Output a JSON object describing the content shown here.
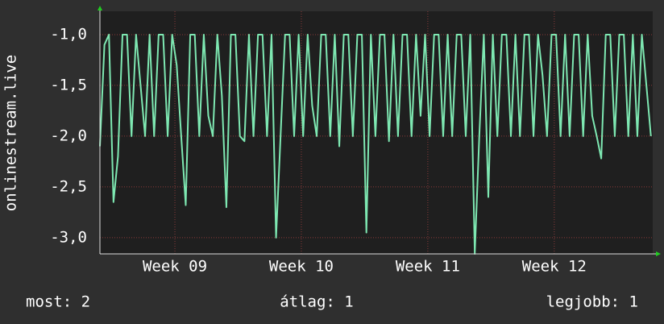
{
  "chart_data": {
    "type": "line",
    "y_label": "onlinestream.live",
    "x": [
      0,
      0.25,
      0.5,
      0.75,
      1,
      1.25,
      1.5,
      1.75,
      2,
      2.25,
      2.5,
      2.75,
      3,
      3.25,
      3.5,
      3.75,
      4,
      4.25,
      4.5,
      4.75,
      5,
      5.25,
      5.5,
      5.75,
      6,
      6.25,
      6.5,
      6.75,
      7,
      7.25,
      7.5,
      7.75,
      8,
      8.25,
      8.5,
      8.75,
      9,
      9.25,
      9.5,
      9.75,
      10,
      10.25,
      10.5,
      10.75,
      11,
      11.25,
      11.5,
      11.75,
      12,
      12.25,
      12.5,
      12.75,
      13,
      13.25,
      13.5,
      13.75,
      14,
      14.25,
      14.5,
      14.75,
      15,
      15.25,
      15.5,
      15.75,
      16,
      16.25,
      16.5,
      16.75,
      17,
      17.25,
      17.5,
      17.75,
      18,
      18.25,
      18.5,
      18.75,
      19,
      19.25,
      19.5,
      19.75,
      20,
      20.25,
      20.5,
      20.75,
      21,
      21.25,
      21.5,
      21.75,
      22,
      22.25,
      22.5,
      22.75,
      23,
      23.25,
      23.5,
      23.75,
      24,
      24.25,
      24.5,
      24.75,
      25,
      25.25,
      25.5,
      25.75,
      26,
      26.25,
      26.5,
      26.75,
      27,
      27.25,
      27.5,
      27.75,
      28,
      28.25,
      28.5,
      28.75,
      29,
      29.25,
      29.5,
      29.75,
      30,
      30.25,
      30.5
    ],
    "series": [
      {
        "name": "onlinestream.live",
        "color": "#7ee8b2",
        "values": [
          -2.1,
          -1.1,
          -1.0,
          -2.65,
          -2.2,
          -1.0,
          -1.0,
          -2.0,
          -1.0,
          -1.5,
          -2.0,
          -1.0,
          -2.0,
          -1.0,
          -1.0,
          -2.0,
          -1.0,
          -1.3,
          -2.0,
          -2.68,
          -1.0,
          -1.0,
          -2.0,
          -1.0,
          -1.8,
          -2.0,
          -1.0,
          -1.6,
          -2.7,
          -1.0,
          -1.0,
          -2.0,
          -2.05,
          -1.0,
          -2.0,
          -1.0,
          -1.0,
          -2.0,
          -1.0,
          -3.0,
          -2.0,
          -1.0,
          -1.0,
          -2.0,
          -1.0,
          -2.0,
          -1.0,
          -1.7,
          -2.0,
          -1.0,
          -1.0,
          -2.0,
          -1.0,
          -2.1,
          -1.0,
          -1.0,
          -2.0,
          -1.0,
          -1.0,
          -2.95,
          -1.0,
          -2.0,
          -1.0,
          -1.0,
          -2.05,
          -1.0,
          -2.0,
          -1.0,
          -1.0,
          -2.0,
          -1.0,
          -1.8,
          -1.0,
          -2.0,
          -1.0,
          -1.0,
          -2.0,
          -1.0,
          -2.0,
          -1.0,
          -1.0,
          -2.0,
          -1.0,
          -3.16,
          -2.0,
          -1.0,
          -2.6,
          -1.0,
          -2.0,
          -1.0,
          -1.0,
          -2.0,
          -1.0,
          -2.0,
          -1.0,
          -1.0,
          -2.0,
          -1.0,
          -1.4,
          -2.0,
          -1.0,
          -1.0,
          -2.0,
          -1.0,
          -2.0,
          -1.0,
          -1.0,
          -2.0,
          -1.0,
          -1.8,
          -2.0,
          -2.22,
          -1.0,
          -1.0,
          -2.0,
          -1.0,
          -1.0,
          -2.0,
          -1.0,
          -2.0,
          -1.0,
          -1.5,
          -2.0
        ]
      }
    ],
    "xlim": [
      0,
      30.6
    ],
    "xticks": [
      {
        "value": 4.15,
        "label": "Week 09"
      },
      {
        "value": 11.15,
        "label": "Week 10"
      },
      {
        "value": 18.15,
        "label": "Week 11"
      },
      {
        "value": 25.15,
        "label": "Week 12"
      }
    ],
    "ylim": [
      -3.16,
      -0.77
    ],
    "yticks": [
      {
        "value": -3,
        "label": "-3,0"
      },
      {
        "value": -2.5,
        "label": "-2,5"
      },
      {
        "value": -2,
        "label": "-2,0"
      },
      {
        "value": -1.5,
        "label": "-1,5"
      },
      {
        "value": -1,
        "label": "-1,0"
      }
    ],
    "grid": true,
    "stats": [
      "most: 2",
      "átlag: 1",
      "legjobb: 1"
    ]
  }
}
